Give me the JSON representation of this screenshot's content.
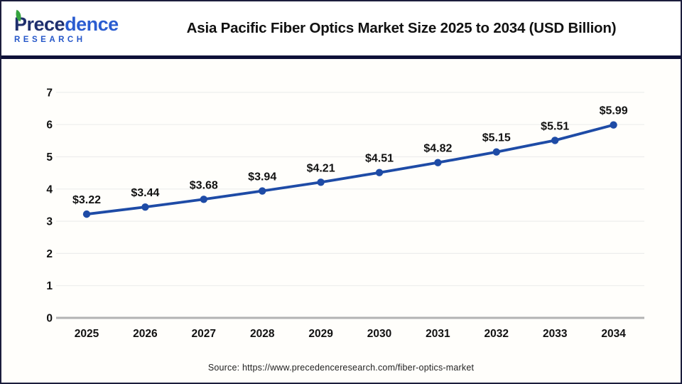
{
  "header": {
    "logo": {
      "part1": "Prece",
      "part2": "dence",
      "subtitle": "RESEARCH"
    },
    "title": "Asia Pacific Fiber Optics Market Size 2025 to 2034 (USD Billion)"
  },
  "footer": {
    "source": "Source: https://www.precedenceresearch.com/fiber-optics-market"
  },
  "colors": {
    "line": "#1e4ba6",
    "rule_navy": "#0d1038",
    "logo_navy": "#1f2f6d",
    "logo_blue": "#2a5cd0",
    "logo_research": "#2456c9",
    "leaf_green": "#35a33f",
    "gridline": "#ededed",
    "baseline": "#b3b3b3",
    "label_text": "#111111"
  },
  "chart_data": {
    "type": "line",
    "title": "Asia Pacific Fiber Optics Market Size 2025 to 2034 (USD Billion)",
    "categories": [
      "2025",
      "2026",
      "2027",
      "2028",
      "2029",
      "2030",
      "2031",
      "2032",
      "2033",
      "2034"
    ],
    "values": [
      3.22,
      3.44,
      3.68,
      3.94,
      4.21,
      4.51,
      4.82,
      5.15,
      5.51,
      5.99
    ],
    "point_labels": [
      "$3.22",
      "$3.44",
      "$3.68",
      "$3.94",
      "$4.21",
      "$4.51",
      "$4.82",
      "$5.15",
      "$5.51",
      "$5.99"
    ],
    "xlabel": "",
    "ylabel": "",
    "ylim": [
      0,
      7
    ],
    "yticks": [
      0,
      1,
      2,
      3,
      4,
      5,
      6,
      7
    ],
    "grid": "horizontal",
    "legend": "none",
    "marker": "circle",
    "unit": "USD Billion"
  }
}
